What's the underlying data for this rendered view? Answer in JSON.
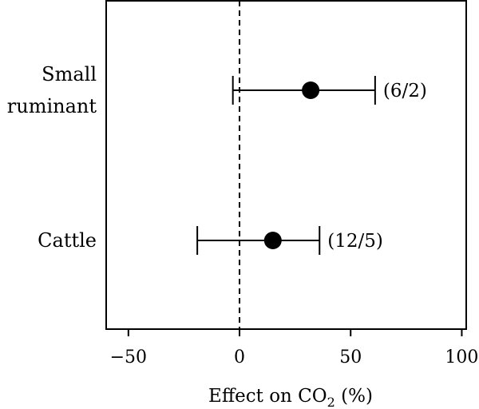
{
  "chart_data": {
    "type": "forest",
    "title": "",
    "xlabel": {
      "prefix": "Effect on CO",
      "subscript": "2",
      "suffix": " (%)"
    },
    "ylabel": "",
    "xlim": [
      -60,
      102
    ],
    "xticks": [
      -50,
      0,
      50,
      100
    ],
    "xtick_labels": [
      "−50",
      "0",
      "50",
      "100"
    ],
    "reference_line": {
      "x": 0,
      "style": "dashed"
    },
    "grid": false,
    "rows": [
      {
        "category_lines": [
          "Small",
          "ruminant"
        ],
        "estimate": 32,
        "ci_low": -3,
        "ci_high": 61,
        "annotation": "(6/2)"
      },
      {
        "category_lines": [
          "Cattle"
        ],
        "estimate": 15,
        "ci_low": -19,
        "ci_high": 36,
        "annotation": "(12/5)"
      }
    ],
    "colors": {
      "marker": "#000000",
      "line": "#000000",
      "frame": "#000000"
    }
  }
}
